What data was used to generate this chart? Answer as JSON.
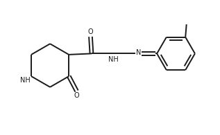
{
  "bg_color": "#ffffff",
  "line_color": "#1a1a1a",
  "line_width": 1.4,
  "font_size": 7.0,
  "fig_width": 3.17,
  "fig_height": 1.95,
  "dpi": 100,
  "xlim": [
    0,
    10.5
  ],
  "ylim": [
    0,
    6.5
  ]
}
